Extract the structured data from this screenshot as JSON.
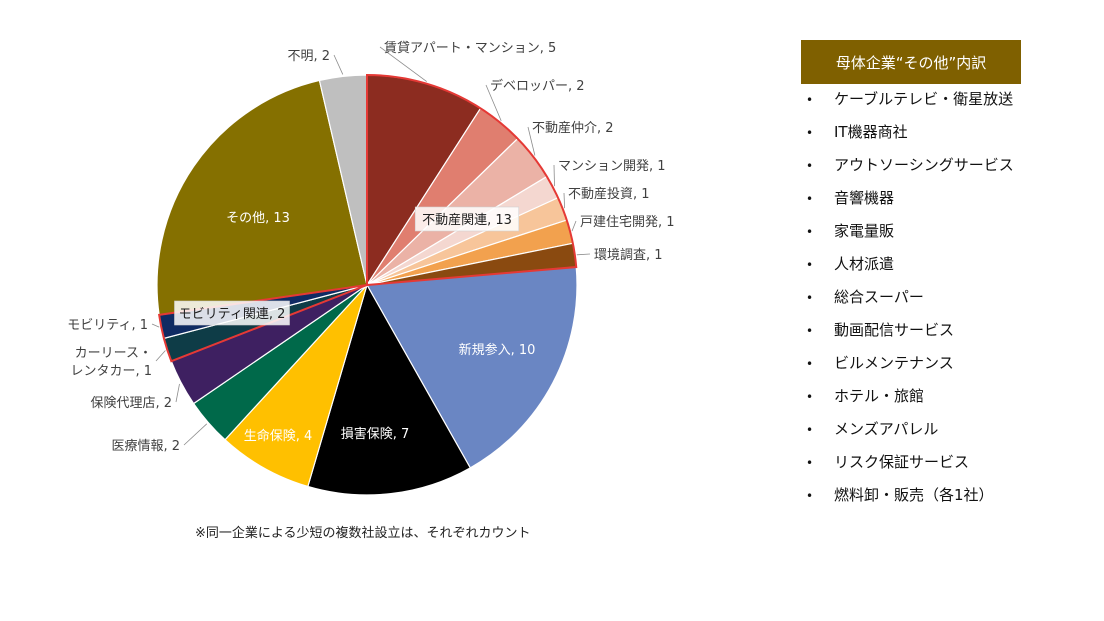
{
  "chart_data": {
    "type": "pie",
    "slices": [
      {
        "label": "賃貸アパート・マンション, 5",
        "value": 5,
        "color": "#8C2C20"
      },
      {
        "label": "デベロッパー, 2",
        "value": 2,
        "color": "#E07E6F"
      },
      {
        "label": "不動産仲介, 2",
        "value": 2,
        "color": "#EBB2A6"
      },
      {
        "label": "マンション開発, 1",
        "value": 1,
        "color": "#F4D7D0"
      },
      {
        "label": "不動産投資, 1",
        "value": 1,
        "color": "#F7C59A"
      },
      {
        "label": "戸建住宅開発, 1",
        "value": 1,
        "color": "#F2A14E"
      },
      {
        "label": "環境調査, 1",
        "value": 1,
        "color": "#8A4A10"
      },
      {
        "label": "新規参入, 10",
        "value": 10,
        "color": "#6A86C3"
      },
      {
        "label": "損害保険, 7",
        "value": 7,
        "color": "#000000"
      },
      {
        "label": "生命保険, 4",
        "value": 4,
        "color": "#FFC000"
      },
      {
        "label": "医療情報, 2",
        "value": 2,
        "color": "#00694A"
      },
      {
        "label": "保険代理店, 2",
        "value": 2,
        "color": "#3E2061"
      },
      {
        "label": "カーリース・\nレンタカー, 1",
        "value": 1,
        "color": "#0E3C47"
      },
      {
        "label": "モビリティ, 1",
        "value": 1,
        "color": "#0F2B63"
      },
      {
        "label": "その他, 13",
        "value": 13,
        "color": "#857000"
      },
      {
        "label": "不明, 2",
        "value": 2,
        "color": "#BFBFBF"
      }
    ],
    "group_labels": [
      {
        "label": "不動産関連, 13",
        "slices": [
          0,
          6
        ]
      },
      {
        "label": "モビリティ関連, 2",
        "slices": [
          12,
          13
        ]
      }
    ],
    "group_outline_color": "#E53935"
  },
  "footnote": "※同一企業による少短の複数社設立は、それぞれカウント",
  "sidebar": {
    "title": "母体企業“その他”内訳",
    "title_bg": "#7F6000",
    "bullet": "•",
    "items": [
      "ケーブルテレビ・衛星放送",
      "IT機器商社",
      "アウトソーシングサービス",
      "音響機器",
      "家電量販",
      "人材派遣",
      "総合スーパー",
      "動画配信サービス",
      "ビルメンテナンス",
      "ホテル・旅館",
      "メンズアパレル",
      "リスク保証サービス",
      "燃料卸・販売（各1社）"
    ]
  }
}
